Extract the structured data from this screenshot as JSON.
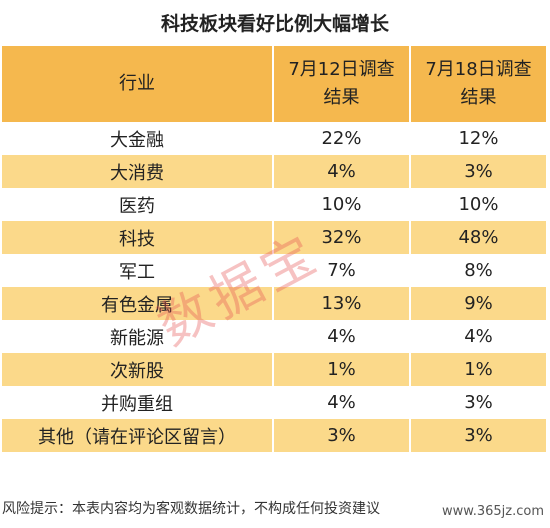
{
  "title": "科技板块看好比例大幅增长",
  "table": {
    "headers": [
      "行业",
      "7月12日调查结果",
      "7月18日调查结果"
    ],
    "rows": [
      [
        "大金融",
        "22%",
        "12%"
      ],
      [
        "大消费",
        "4%",
        "3%"
      ],
      [
        "医药",
        "10%",
        "10%"
      ],
      [
        "科技",
        "32%",
        "48%"
      ],
      [
        "军工",
        "7%",
        "8%"
      ],
      [
        "有色金属",
        "13%",
        "9%"
      ],
      [
        "新能源",
        "4%",
        "4%"
      ],
      [
        "次新股",
        "1%",
        "1%"
      ],
      [
        "并购重组",
        "4%",
        "3%"
      ],
      [
        "其他（请在评论区留言）",
        "3%",
        "3%"
      ]
    ]
  },
  "watermark": "数据宝",
  "footer": "风险提示：本表内容均为客观数据统计，不构成任何投资建议",
  "site_url": "www.365jz.com",
  "colors": {
    "header_bg": "#f5b84e",
    "stripe_bg": "#fbd98a",
    "watermark": "#e65050"
  }
}
